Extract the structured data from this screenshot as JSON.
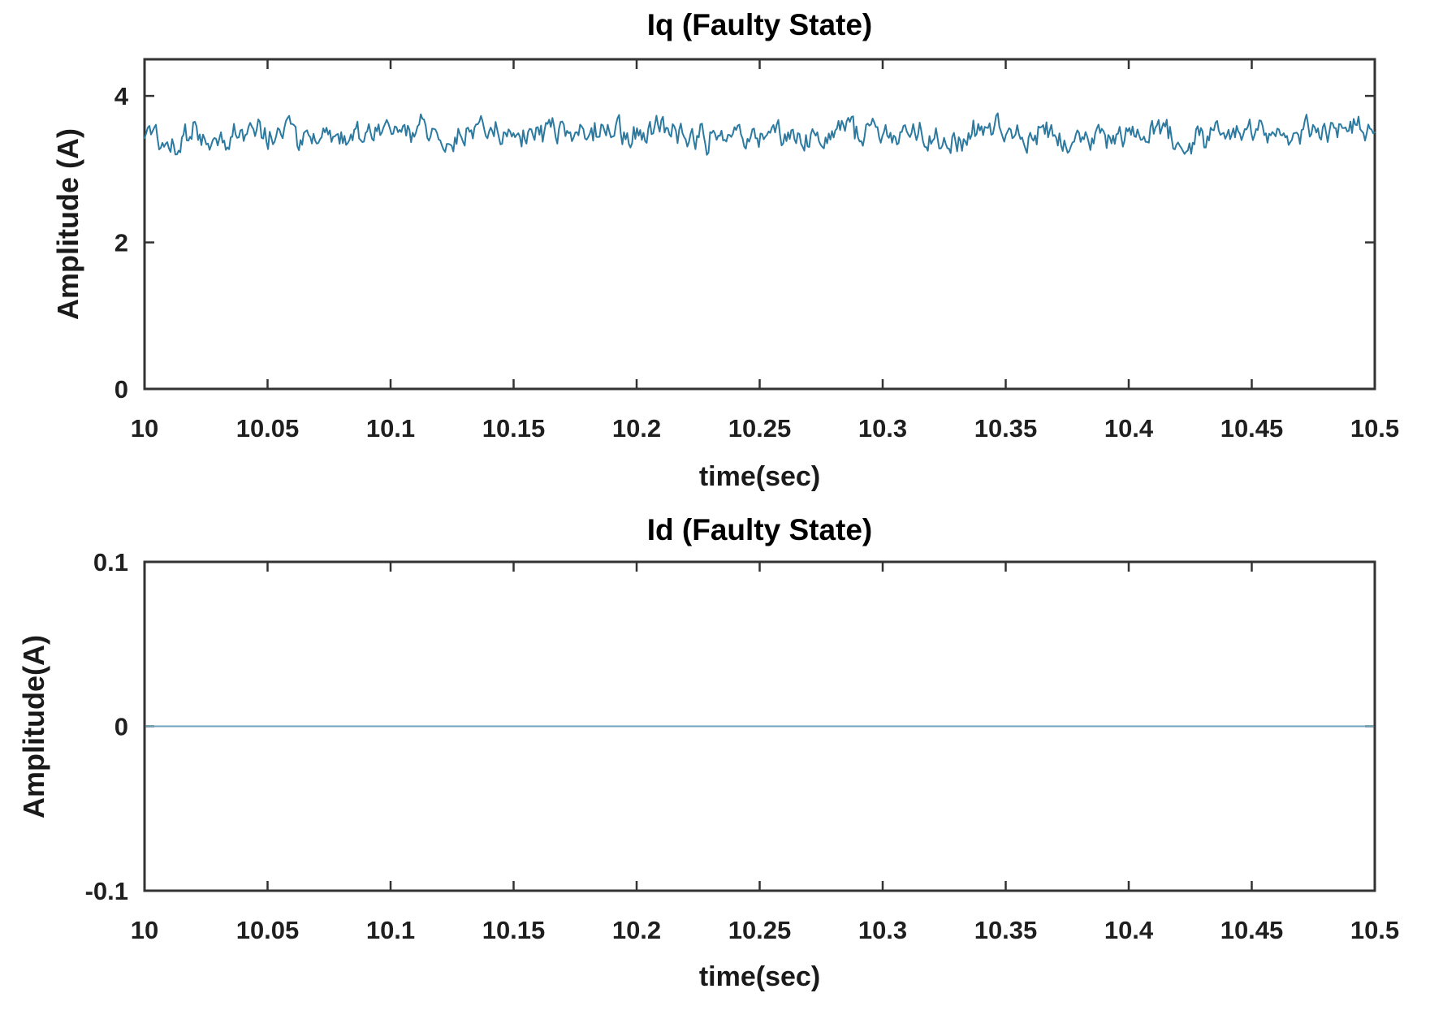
{
  "figure": {
    "background": "#ffffff",
    "axis_color": "#333333",
    "tick_text_color": "#1f1f1f"
  },
  "chart_data": [
    {
      "type": "line",
      "title": "Iq (Faulty State)",
      "xlabel": "time(sec)",
      "ylabel": "Amplitude (A)",
      "xlim": [
        10,
        10.5
      ],
      "ylim": [
        0,
        4.5
      ],
      "xticks": [
        10,
        10.05,
        10.1,
        10.15,
        10.2,
        10.25,
        10.3,
        10.35,
        10.4,
        10.45,
        10.5
      ],
      "xtick_labels": [
        "10",
        "10.05",
        "10.1",
        "10.15",
        "10.2",
        "10.25",
        "10.3",
        "10.35",
        "10.4",
        "10.45",
        "10.5"
      ],
      "yticks": [
        0,
        2,
        4
      ],
      "ytick_labels": [
        "0",
        "2",
        "4"
      ],
      "grid": false,
      "legend": null,
      "line_color": "#2a7aa1",
      "line_width": 2,
      "series": [
        {
          "name": "Iq",
          "kind": "noise",
          "mean": 3.5,
          "approx_min": 3.14,
          "approx_max": 3.9,
          "approx_std": 0.1,
          "n_points": 758,
          "seed": 12,
          "hf_amp": 0.27,
          "lf_amp": 0.55,
          "jitter": 0.05
        }
      ]
    },
    {
      "type": "line",
      "title": "Id (Faulty State)",
      "xlabel": "time(sec)",
      "ylabel": "Amplitude(A)",
      "xlim": [
        10,
        10.5
      ],
      "ylim": [
        -0.1,
        0.1
      ],
      "xticks": [
        10,
        10.05,
        10.1,
        10.15,
        10.2,
        10.25,
        10.3,
        10.35,
        10.4,
        10.45,
        10.5
      ],
      "xtick_labels": [
        "10",
        "10.05",
        "10.1",
        "10.15",
        "10.2",
        "10.25",
        "10.3",
        "10.35",
        "10.4",
        "10.45",
        "10.5"
      ],
      "yticks": [
        -0.1,
        0,
        0.1
      ],
      "ytick_labels": [
        "-0.1",
        "0",
        "0.1"
      ],
      "grid": false,
      "legend": null,
      "line_color": "#6fa3bd",
      "line_width": 2,
      "series": [
        {
          "name": "Id",
          "kind": "constant",
          "value": 0
        }
      ]
    }
  ]
}
